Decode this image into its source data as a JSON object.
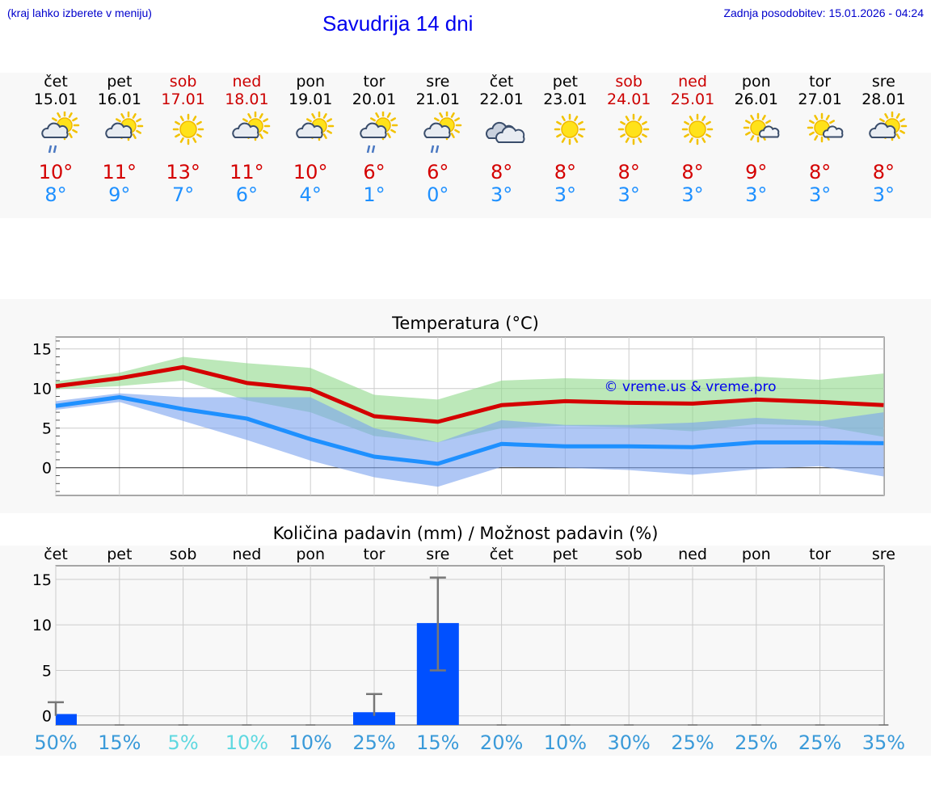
{
  "header": {
    "left_note": "(kraj lahko izberete v meniju)",
    "title": "Savudrija 14 dni",
    "updated": "Zadnja posodobitev: 15.01.2026 - 04:24"
  },
  "colors": {
    "max": "#d40000",
    "min": "#1e90ff",
    "weekend": "#cc0000",
    "bar": "#0050ff"
  },
  "days": [
    {
      "name": "čet",
      "date": "15.01",
      "weekend": false,
      "icon": "sun-cloud-rain-icon",
      "tmax": "10°",
      "tmin": "8°"
    },
    {
      "name": "pet",
      "date": "16.01",
      "weekend": false,
      "icon": "sun-cloud-icon",
      "tmax": "11°",
      "tmin": "9°"
    },
    {
      "name": "sob",
      "date": "17.01",
      "weekend": true,
      "icon": "sun-icon",
      "tmax": "13°",
      "tmin": "7°"
    },
    {
      "name": "ned",
      "date": "18.01",
      "weekend": true,
      "icon": "sun-cloud-icon",
      "tmax": "11°",
      "tmin": "6°"
    },
    {
      "name": "pon",
      "date": "19.01",
      "weekend": false,
      "icon": "sun-cloud-icon",
      "tmax": "10°",
      "tmin": "4°"
    },
    {
      "name": "tor",
      "date": "20.01",
      "weekend": false,
      "icon": "sun-cloud-rain-icon",
      "tmax": "6°",
      "tmin": "1°"
    },
    {
      "name": "sre",
      "date": "21.01",
      "weekend": false,
      "icon": "sun-cloud-rain-icon",
      "tmax": "6°",
      "tmin": "0°"
    },
    {
      "name": "čet",
      "date": "22.01",
      "weekend": false,
      "icon": "cloudy-icon",
      "tmax": "8°",
      "tmin": "3°"
    },
    {
      "name": "pet",
      "date": "23.01",
      "weekend": false,
      "icon": "sun-icon",
      "tmax": "8°",
      "tmin": "3°"
    },
    {
      "name": "sob",
      "date": "24.01",
      "weekend": true,
      "icon": "sun-icon",
      "tmax": "8°",
      "tmin": "3°"
    },
    {
      "name": "ned",
      "date": "25.01",
      "weekend": true,
      "icon": "sun-icon",
      "tmax": "8°",
      "tmin": "3°"
    },
    {
      "name": "pon",
      "date": "26.01",
      "weekend": false,
      "icon": "sun-small-cloud-icon",
      "tmax": "9°",
      "tmin": "3°"
    },
    {
      "name": "tor",
      "date": "27.01",
      "weekend": false,
      "icon": "sun-small-cloud-icon",
      "tmax": "8°",
      "tmin": "3°"
    },
    {
      "name": "sre",
      "date": "28.01",
      "weekend": false,
      "icon": "sun-cloud-icon",
      "tmax": "8°",
      "tmin": "3°"
    }
  ],
  "chart_data": [
    {
      "type": "line",
      "title": "Temperatura (°C)",
      "watermark": "© vreme.us & vreme.pro",
      "ylim": [
        -3.5,
        16.5
      ],
      "yticks": [
        0,
        5,
        10,
        15
      ],
      "x": [
        0,
        1,
        2,
        3,
        4,
        5,
        6,
        7,
        8,
        9,
        10,
        11,
        12,
        13
      ],
      "series": [
        {
          "name": "max",
          "values": [
            10.3,
            11.3,
            12.7,
            10.7,
            9.9,
            6.5,
            5.8,
            7.9,
            8.4,
            8.2,
            8.1,
            8.6,
            8.3,
            7.9
          ]
        },
        {
          "name": "min",
          "values": [
            7.8,
            8.9,
            7.4,
            6.2,
            3.6,
            1.4,
            0.5,
            3.0,
            2.7,
            2.7,
            2.6,
            3.2,
            3.2,
            3.1
          ]
        }
      ],
      "bands": [
        {
          "name": "max-range",
          "lower": [
            9.9,
            10.3,
            11.0,
            8.5,
            7.0,
            4.0,
            3.2,
            5.0,
            5.3,
            5.1,
            4.6,
            5.5,
            5.3,
            3.9
          ],
          "upper": [
            10.9,
            12.0,
            14.0,
            13.2,
            12.6,
            9.2,
            8.6,
            11.0,
            11.3,
            11.1,
            11.1,
            11.5,
            11.1,
            11.9
          ]
        },
        {
          "name": "min-range",
          "lower": [
            7.3,
            8.3,
            5.9,
            3.5,
            0.9,
            -1.2,
            -2.4,
            0.1,
            0.0,
            -0.3,
            -0.9,
            -0.2,
            0.2,
            -1.1
          ],
          "upper": [
            8.4,
            9.4,
            8.9,
            8.9,
            8.9,
            5.0,
            3.2,
            6.0,
            5.4,
            5.4,
            5.7,
            6.3,
            5.9,
            7.0
          ]
        }
      ]
    },
    {
      "type": "bar",
      "title": "Količina padavin (mm) / Možnost padavin (%)",
      "categories": [
        "čet",
        "pet",
        "sob",
        "ned",
        "pon",
        "tor",
        "sre",
        "čet",
        "pet",
        "sob",
        "ned",
        "pon",
        "tor",
        "sre"
      ],
      "ylim": [
        -1,
        16.5
      ],
      "yticks": [
        0,
        5,
        10,
        15
      ],
      "values": [
        0.2,
        0,
        0,
        0,
        0,
        0.4,
        10.2,
        0,
        0,
        0,
        0,
        0,
        0,
        0
      ],
      "error_low": [
        0,
        0,
        0,
        0,
        0,
        0,
        5.0,
        0,
        0,
        0,
        0,
        0,
        0,
        0
      ],
      "error_high": [
        1.5,
        0,
        0,
        0,
        0,
        2.4,
        15.2,
        0,
        0,
        0,
        0,
        0,
        0,
        0
      ],
      "probability": [
        "50%",
        "15%",
        "5%",
        "10%",
        "10%",
        "25%",
        "15%",
        "20%",
        "10%",
        "30%",
        "25%",
        "25%",
        "25%",
        "35%"
      ],
      "probability_colors": [
        "#3a9ad9",
        "#3a9ad9",
        "#5fd8e0",
        "#5fd8e0",
        "#3a9ad9",
        "#3a9ad9",
        "#3a9ad9",
        "#3a9ad9",
        "#3a9ad9",
        "#3a9ad9",
        "#3a9ad9",
        "#3a9ad9",
        "#3a9ad9",
        "#3a9ad9"
      ]
    }
  ]
}
